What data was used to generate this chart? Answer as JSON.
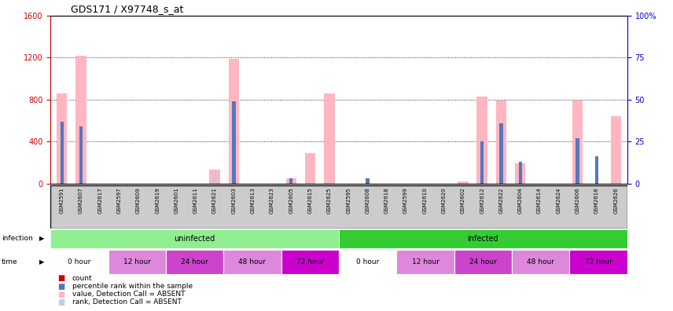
{
  "title": "GDS171 / X97748_s_at",
  "samples": [
    "GSM2591",
    "GSM2607",
    "GSM2617",
    "GSM2597",
    "GSM2609",
    "GSM2619",
    "GSM2601",
    "GSM2611",
    "GSM2621",
    "GSM2603",
    "GSM2613",
    "GSM2623",
    "GSM2605",
    "GSM2615",
    "GSM2625",
    "GSM2595",
    "GSM2608",
    "GSM2618",
    "GSM2599",
    "GSM2610",
    "GSM2620",
    "GSM2602",
    "GSM2612",
    "GSM2622",
    "GSM2604",
    "GSM2614",
    "GSM2624",
    "GSM2606",
    "GSM2616",
    "GSM2626"
  ],
  "absent_values": [
    860,
    1220,
    0,
    0,
    0,
    0,
    0,
    0,
    135,
    1190,
    0,
    0,
    50,
    290,
    860,
    0,
    0,
    0,
    0,
    0,
    0,
    20,
    830,
    790,
    190,
    0,
    0,
    790,
    0,
    640
  ],
  "absent_rank_pct": [
    37,
    34,
    0,
    0,
    0,
    0,
    0,
    0,
    8,
    49,
    0,
    0,
    3,
    0,
    0,
    0,
    3,
    0,
    0,
    0,
    0,
    0,
    25,
    36,
    13,
    0,
    0,
    27,
    16,
    0
  ],
  "rank_pct": [
    37,
    34,
    0,
    0,
    0,
    0,
    0,
    0,
    0,
    49,
    0,
    0,
    3,
    0,
    0,
    0,
    3,
    0,
    0,
    0,
    0,
    0,
    25,
    36,
    13,
    0,
    0,
    27,
    16,
    0
  ],
  "count_values": [
    0,
    0,
    0,
    0,
    0,
    0,
    0,
    0,
    0,
    0,
    0,
    0,
    0,
    0,
    0,
    0,
    0,
    0,
    0,
    0,
    0,
    0,
    0,
    0,
    0,
    0,
    0,
    0,
    0,
    0
  ],
  "ylim_left": [
    0,
    1600
  ],
  "ylim_right": [
    0,
    100
  ],
  "yticks_left": [
    0,
    400,
    800,
    1200,
    1600
  ],
  "yticks_right": [
    0,
    25,
    50,
    75,
    100
  ],
  "infection_groups": [
    {
      "label": "uninfected",
      "start": 0,
      "end": 15,
      "color": "#90EE90"
    },
    {
      "label": "infected",
      "start": 15,
      "end": 30,
      "color": "#33CC33"
    }
  ],
  "time_groups": [
    {
      "label": "0 hour",
      "start": 0,
      "end": 3,
      "color": "#FFFFFF"
    },
    {
      "label": "12 hour",
      "start": 3,
      "end": 6,
      "color": "#DD88DD"
    },
    {
      "label": "24 hour",
      "start": 6,
      "end": 9,
      "color": "#CC44CC"
    },
    {
      "label": "48 hour",
      "start": 9,
      "end": 12,
      "color": "#DD88DD"
    },
    {
      "label": "72 hour",
      "start": 12,
      "end": 15,
      "color": "#CC00CC"
    },
    {
      "label": "0 hour",
      "start": 15,
      "end": 18,
      "color": "#FFFFFF"
    },
    {
      "label": "12 hour",
      "start": 18,
      "end": 21,
      "color": "#DD88DD"
    },
    {
      "label": "24 hour",
      "start": 21,
      "end": 24,
      "color": "#CC44CC"
    },
    {
      "label": "48 hour",
      "start": 24,
      "end": 27,
      "color": "#DD88DD"
    },
    {
      "label": "72 hour",
      "start": 27,
      "end": 30,
      "color": "#CC00CC"
    }
  ],
  "absent_bar_color": "#FFB6C1",
  "absent_rank_color": "#BBCCEE",
  "rank_color": "#5577BB",
  "count_color": "#CC0000",
  "left_axis_color": "#CC0000",
  "right_axis_color": "#0000CC",
  "bg_color": "#FFFFFF",
  "gray_band_color": "#CCCCCC"
}
